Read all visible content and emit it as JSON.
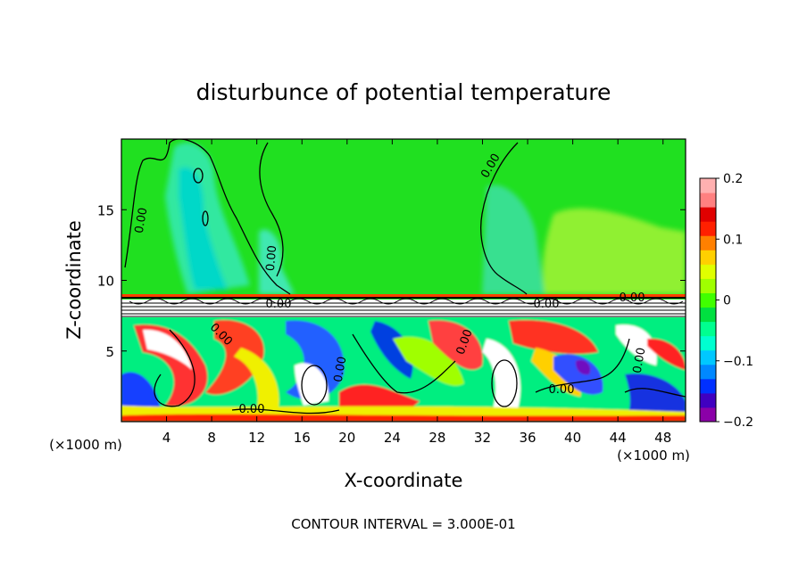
{
  "chart_data": {
    "type": "heatmap",
    "title": "disturbunce of potential temperature",
    "xlabel": "X-coordinate",
    "ylabel": "Z-coordinate",
    "x_unit_left": "(×1000 m)",
    "x_unit_right": "(×1000 m)",
    "xlim": [
      0,
      50
    ],
    "ylim": [
      0,
      20
    ],
    "x_ticks": [
      4,
      8,
      12,
      16,
      20,
      24,
      28,
      32,
      36,
      40,
      44,
      48
    ],
    "y_ticks": [
      5,
      10,
      15
    ],
    "colorbar": {
      "min": -0.2,
      "max": 0.2,
      "ticks": [
        0.2,
        0.1,
        0,
        -0.1,
        -0.2
      ],
      "tick_labels": [
        "0.2",
        "0.1",
        "0",
        "−0.1",
        "−0.2"
      ],
      "colors": [
        "#8b00a8",
        "#4000c0",
        "#0030ff",
        "#0088ff",
        "#00c8ff",
        "#00ffd0",
        "#00ff90",
        "#00e040",
        "#40ff00",
        "#a0ff00",
        "#e0ff00",
        "#ffd000",
        "#ff8000",
        "#ff2000",
        "#e00000",
        "#ff8080",
        "#ffb0b0"
      ]
    },
    "contour_interval": "CONTOUR INTERVAL = 3.000E-01",
    "contour_labels": [
      "0.00",
      "0.00",
      "0.00",
      "0.00",
      "0.00",
      "0.00",
      "0.00",
      "0.00",
      "0.00",
      "0.00",
      "0.00",
      "0.00"
    ],
    "regions": [
      {
        "name": "upper",
        "z_range": [
          9,
          20
        ],
        "value": 0.0,
        "note": "near-zero green with cyan patches"
      },
      {
        "name": "lower",
        "z_range": [
          0,
          7.5
        ],
        "value_range": [
          -0.2,
          0.2
        ],
        "note": "strong turbulent disturbance"
      }
    ]
  }
}
